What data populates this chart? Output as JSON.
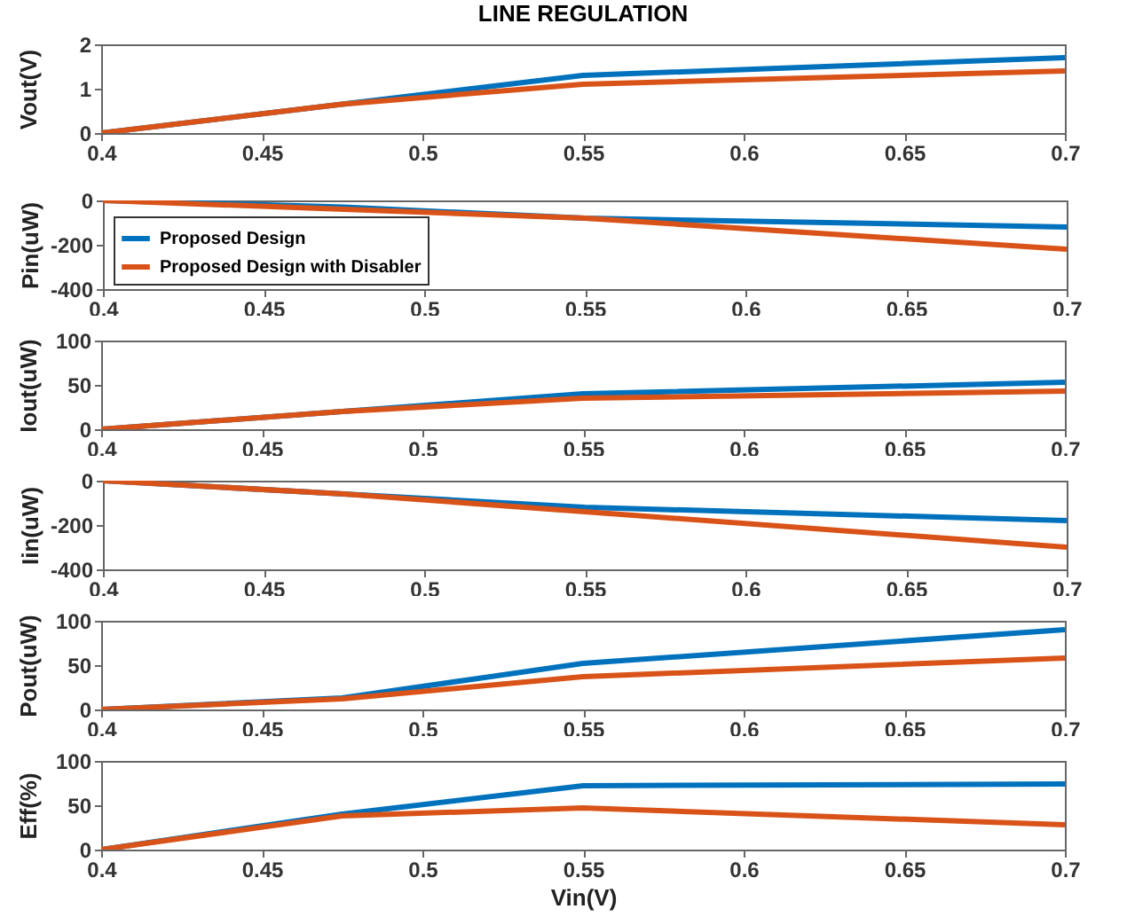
{
  "chart_data": [
    {
      "type": "line",
      "title": "LINE REGULATION",
      "ylabel": "Vout(V)",
      "x": [
        0.4,
        0.475,
        0.55,
        0.7
      ],
      "xlim": [
        0.4,
        0.7
      ],
      "xticks": [
        0.4,
        0.45,
        0.5,
        0.55,
        0.6,
        0.65,
        0.7
      ],
      "ylim": [
        0,
        2
      ],
      "yticks": [
        0,
        1,
        2
      ],
      "grid": false,
      "legend": false,
      "series": [
        {
          "color": "#0072bd",
          "values": [
            0,
            0.65,
            1.3,
            1.7
          ]
        },
        {
          "color": "#d95319",
          "values": [
            0,
            0.65,
            1.1,
            1.4
          ]
        }
      ]
    },
    {
      "type": "line",
      "ylabel": "Pin(uW)",
      "x": [
        0.4,
        0.475,
        0.55,
        0.7
      ],
      "xlim": [
        0.4,
        0.7
      ],
      "xticks": [
        0.4,
        0.45,
        0.5,
        0.55,
        0.6,
        0.65,
        0.7
      ],
      "ylim": [
        -400,
        0
      ],
      "yticks": [
        -400,
        -200,
        0
      ],
      "grid": false,
      "legend": "left",
      "series": [
        {
          "name": "Proposed Design",
          "color": "#0072bd",
          "values": [
            0,
            -30,
            -80,
            -120
          ]
        },
        {
          "name": "Proposed Design with Disabler",
          "color": "#d95319",
          "values": [
            0,
            -40,
            -80,
            -220
          ]
        }
      ]
    },
    {
      "type": "line",
      "ylabel": "Iout(uW)",
      "x": [
        0.4,
        0.475,
        0.55,
        0.7
      ],
      "xlim": [
        0.4,
        0.7
      ],
      "xticks": [
        0.4,
        0.45,
        0.5,
        0.55,
        0.6,
        0.65,
        0.7
      ],
      "ylim": [
        0,
        100
      ],
      "yticks": [
        0,
        50,
        100
      ],
      "grid": false,
      "legend": false,
      "series": [
        {
          "color": "#0072bd",
          "values": [
            0,
            20,
            40,
            53
          ]
        },
        {
          "color": "#d95319",
          "values": [
            0,
            20,
            35,
            43
          ]
        }
      ]
    },
    {
      "type": "line",
      "ylabel": "Iin(uW)",
      "x": [
        0.4,
        0.475,
        0.55,
        0.7
      ],
      "xlim": [
        0.4,
        0.7
      ],
      "xticks": [
        0.4,
        0.45,
        0.5,
        0.55,
        0.6,
        0.65,
        0.7
      ],
      "ylim": [
        -400,
        0
      ],
      "yticks": [
        -400,
        -200,
        0
      ],
      "grid": false,
      "legend": false,
      "series": [
        {
          "color": "#0072bd",
          "values": [
            0,
            -60,
            -120,
            -180
          ]
        },
        {
          "color": "#d95319",
          "values": [
            0,
            -60,
            -140,
            -300
          ]
        }
      ]
    },
    {
      "type": "line",
      "ylabel": "Pout(uW)",
      "x": [
        0.4,
        0.475,
        0.55,
        0.7
      ],
      "xlim": [
        0.4,
        0.7
      ],
      "xticks": [
        0.4,
        0.45,
        0.5,
        0.55,
        0.6,
        0.65,
        0.7
      ],
      "ylim": [
        0,
        100
      ],
      "yticks": [
        0,
        50,
        100
      ],
      "grid": false,
      "legend": false,
      "series": [
        {
          "color": "#0072bd",
          "values": [
            0,
            13,
            52,
            90
          ]
        },
        {
          "color": "#d95319",
          "values": [
            0,
            12,
            37,
            58
          ]
        }
      ]
    },
    {
      "type": "line",
      "ylabel": "Eff(%)",
      "xlabel": "Vin(V)",
      "x": [
        0.4,
        0.475,
        0.55,
        0.7
      ],
      "xlim": [
        0.4,
        0.7
      ],
      "xticks": [
        0.4,
        0.45,
        0.5,
        0.55,
        0.6,
        0.65,
        0.7
      ],
      "ylim": [
        0,
        100
      ],
      "yticks": [
        0,
        50,
        100
      ],
      "grid": false,
      "legend": false,
      "series": [
        {
          "color": "#0072bd",
          "values": [
            0,
            40,
            72,
            74
          ]
        },
        {
          "color": "#d95319",
          "values": [
            0,
            38,
            47,
            28
          ]
        }
      ]
    }
  ]
}
